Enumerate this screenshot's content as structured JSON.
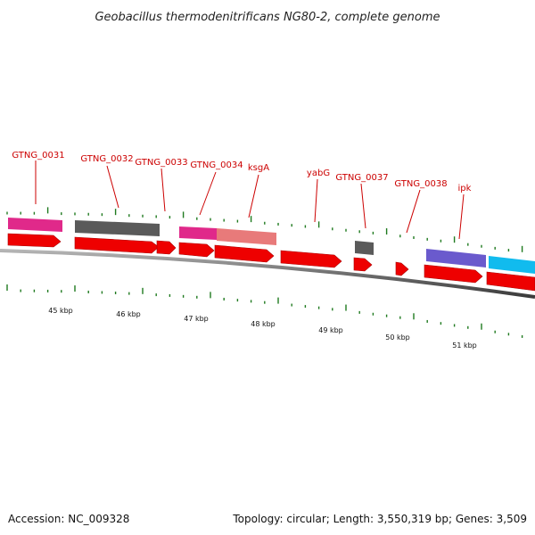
{
  "title": "Geobacillus thermodenitrificans NG80-2, complete genome",
  "accession": "Accession: NC_009328",
  "summary": "Topology: circular; Length: 3,550,319 bp; Genes: 3,509",
  "gene_labels": [
    "GTNG_0031",
    "GTNG_0032",
    "GTNG_0033",
    "GTNG_0034",
    "ksgA",
    "yabG",
    "GTNG_0037",
    "GTNG_0038",
    "ipk"
  ],
  "kbp_labels": [
    "45 kbp",
    "46 kbp",
    "47 kbp",
    "48 kbp",
    "49 kbp",
    "50 kbp",
    "51 kbp"
  ],
  "colors": {
    "cds": "#ee0000",
    "magenta": "#e0298a",
    "gray": "#5a5a5a",
    "salmon": "#e87a7a",
    "purple": "#6a5acd",
    "cyan": "#11bbee",
    "tick": "#1f7a1f",
    "backbone": "#7a7a7a",
    "label": "#cc0000"
  }
}
